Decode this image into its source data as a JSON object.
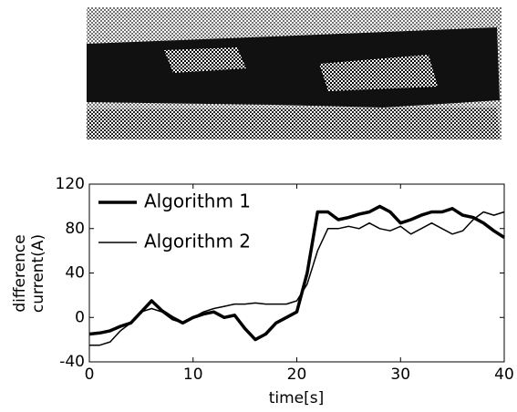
{
  "chart_data": {
    "type": "line",
    "xlabel": "time[s]",
    "ylabel": [
      "difference",
      "current(A)"
    ],
    "x": [
      0,
      1,
      2,
      3,
      4,
      5,
      6,
      7,
      8,
      9,
      10,
      11,
      12,
      13,
      14,
      15,
      16,
      17,
      18,
      19,
      20,
      21,
      22,
      23,
      24,
      25,
      26,
      27,
      28,
      29,
      30,
      31,
      32,
      33,
      34,
      35,
      36,
      37,
      38,
      39,
      40
    ],
    "series": [
      {
        "name": "Algorithm 1",
        "color": "#000000",
        "width": 3.5,
        "values": [
          -15,
          -14,
          -12,
          -8,
          -5,
          5,
          15,
          6,
          0,
          -5,
          0,
          3,
          5,
          0,
          2,
          -10,
          -20,
          -15,
          -5,
          0,
          5,
          40,
          95,
          95,
          88,
          90,
          93,
          95,
          100,
          95,
          85,
          88,
          92,
          95,
          95,
          98,
          92,
          90,
          85,
          78,
          72
        ]
      },
      {
        "name": "Algorithm 2",
        "color": "#000000",
        "width": 1.5,
        "values": [
          -25,
          -25,
          -22,
          -12,
          -5,
          5,
          8,
          5,
          -2,
          -5,
          0,
          5,
          8,
          10,
          12,
          12,
          13,
          12,
          12,
          12,
          15,
          30,
          60,
          80,
          80,
          82,
          80,
          85,
          80,
          78,
          82,
          75,
          80,
          85,
          80,
          75,
          78,
          88,
          95,
          92,
          95
        ]
      }
    ],
    "xlim": [
      0,
      40
    ],
    "xticks": [
      0,
      10,
      20,
      30,
      40
    ],
    "ylim": [
      -40,
      120
    ],
    "yticks": [
      -40,
      0,
      40,
      80,
      120
    ],
    "legend": "upper-left"
  }
}
